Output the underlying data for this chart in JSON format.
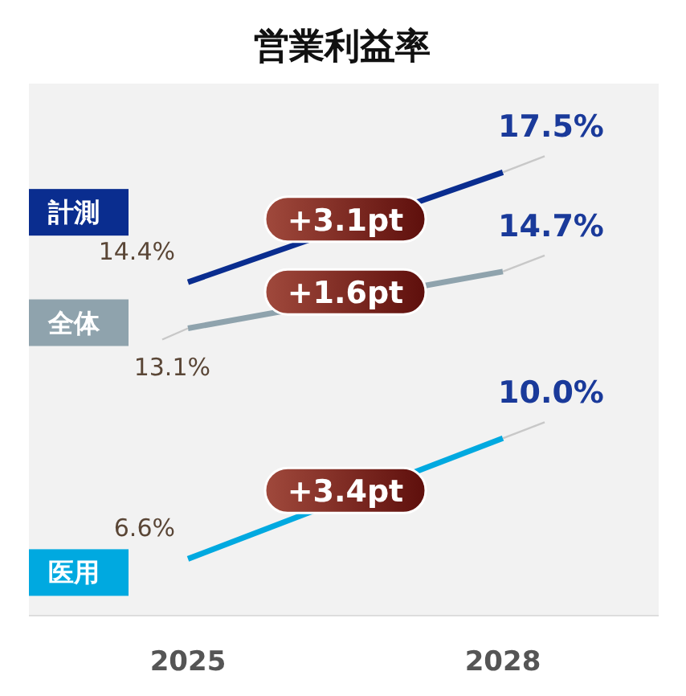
{
  "chart_data": {
    "type": "line",
    "title": "営業利益率",
    "categories": [
      "2025",
      "2028"
    ],
    "ylim": [
      5,
      20
    ],
    "series": [
      {
        "name": "計測",
        "color": "#0a2d8f",
        "values": [
          14.4,
          17.5
        ],
        "value_labels": [
          "14.4%",
          "17.5%"
        ]
      },
      {
        "name": "全体",
        "color": "#8fa3ad",
        "values": [
          13.1,
          14.7
        ],
        "value_labels": [
          "13.1%",
          "14.7%"
        ]
      },
      {
        "name": "医用",
        "color": "#00a9e0",
        "values": [
          6.6,
          10.0
        ],
        "value_labels": [
          "6.6%",
          "10.0%"
        ]
      }
    ],
    "annotations": [
      "+3.1pt",
      "+1.6pt",
      "+3.4pt"
    ],
    "marker": "none",
    "line_style": "solid"
  }
}
